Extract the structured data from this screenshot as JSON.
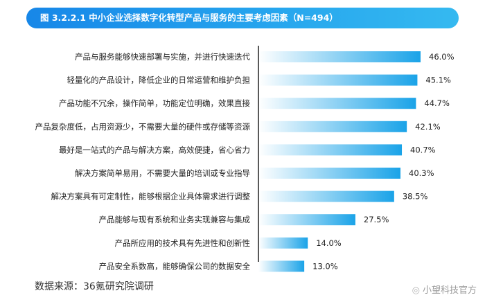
{
  "header": {
    "title": "图 3.2.2.1 中小企业选择数字化转型产品与服务的主要考虑因素（N=494）"
  },
  "chart_data": {
    "type": "bar",
    "orientation": "horizontal",
    "categories": [
      "产品与服务能够快速部署与实施，并进行快速迭代",
      "轻量化的产品设计，降低企业的日常运营和维护负担",
      "产品功能不冗余，操作简单，功能定位明确，效果直接",
      "产品复杂度低，占用资源少，不需要大量的硬件或存储等资源",
      "最好是一站式的产品与解决方案，高效便捷，省心省力",
      "解决方案简单易用，不需要大量的培训或专业指导",
      "解决方案具有可定制性，能够根据企业具体需求进行调整",
      "产品能够与现有系统和业务实现兼容与集成",
      "产品所应用的技术具有先进性和创新性",
      "产品安全系数高，能够确保公司的数据安全"
    ],
    "values": [
      46.0,
      45.1,
      44.7,
      42.1,
      40.7,
      40.3,
      38.5,
      27.5,
      14.0,
      13.0
    ],
    "value_labels": [
      "46.0%",
      "45.1%",
      "44.7%",
      "42.1%",
      "40.7%",
      "40.3%",
      "38.5%",
      "27.5%",
      "14.0%",
      "13.0%"
    ],
    "title": "图 3.2.2.1 中小企业选择数字化转型产品与服务的主要考虑因素（N=494）",
    "xlim": [
      0,
      50
    ],
    "grid": false,
    "bar_color_start": "#ffffff",
    "bar_color_end": "#1aa3e8"
  },
  "footer": {
    "source": "数据来源：36氪研究院调研",
    "watermark": "小望科技官方",
    "watermark_icon": "weibo-icon"
  }
}
